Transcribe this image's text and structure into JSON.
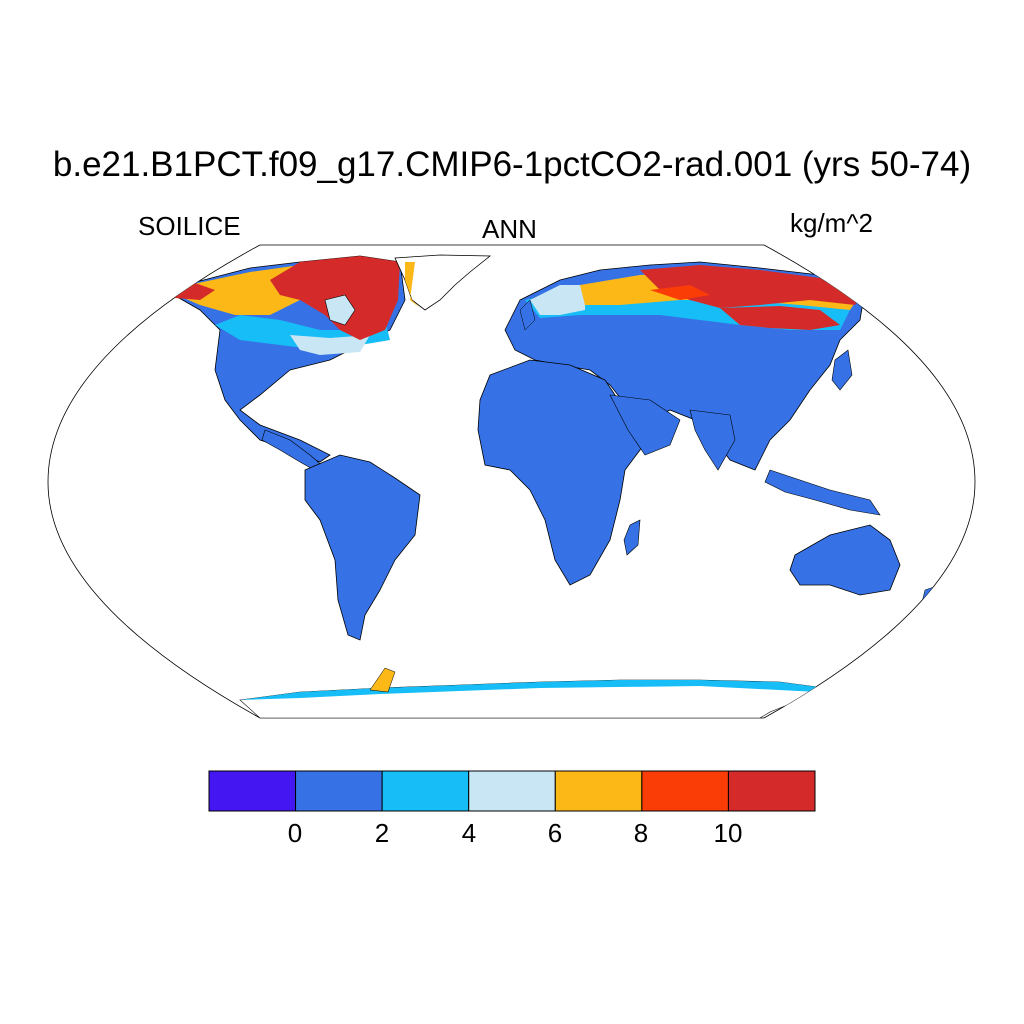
{
  "title": "b.e21.B1PCT.f09_g17.CMIP6-1pctCO2-rad.001 (yrs 50-74)",
  "left_label": "SOILICE",
  "center_label": "ANN",
  "right_label": "kg/m^2",
  "map": {
    "projection": "Robinson",
    "variable": "SOILICE",
    "season": "ANN",
    "units": "kg/m^2"
  },
  "colorbar": {
    "colors": [
      "#4416f1",
      "#3672e6",
      "#16bdf6",
      "#c8e6f4",
      "#fbb816",
      "#fa3c07",
      "#d42a2a"
    ],
    "ticks": [
      "0",
      "2",
      "4",
      "6",
      "8",
      "10"
    ]
  }
}
